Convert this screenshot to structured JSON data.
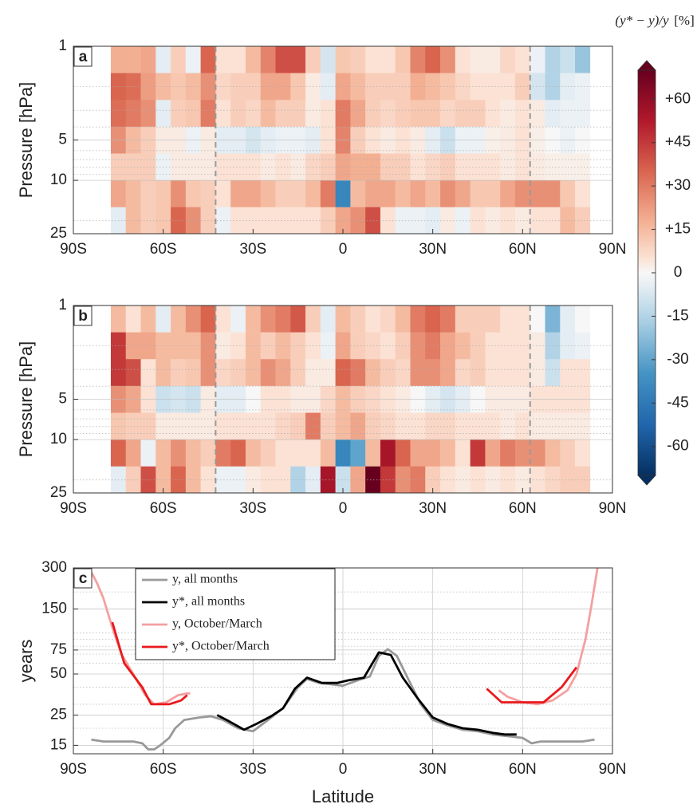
{
  "chart_data": [
    {
      "type": "heatmap",
      "panel": "a",
      "ylabel": "Pressure [hPa]",
      "xlim": [
        -90,
        90
      ],
      "ylim": [
        1,
        25
      ],
      "log_y": true,
      "y_reversed": true,
      "xticks": [
        {
          "value": -90,
          "label": "90S"
        },
        {
          "value": -60,
          "label": "60S"
        },
        {
          "value": -30,
          "label": "30S"
        },
        0,
        {
          "value": 30,
          "label": "30N"
        },
        {
          "value": 60,
          "label": "60N"
        },
        {
          "value": 90,
          "label": "90N"
        }
      ],
      "yticks": [
        1,
        5,
        10,
        25
      ],
      "yminor": [
        2,
        3,
        4,
        6,
        7,
        8,
        9,
        20
      ],
      "grid": true,
      "vlines": [
        -42.5,
        62.5
      ],
      "x_edges": [
        -77.5,
        -72.5,
        -67.5,
        -62.5,
        -57.5,
        -52.5,
        -47.5,
        -42.5,
        -37.5,
        -32.5,
        -27.5,
        -22.5,
        -17.5,
        -12.5,
        -7.5,
        -2.5,
        2.5,
        7.5,
        12.5,
        17.5,
        22.5,
        27.5,
        32.5,
        37.5,
        42.5,
        47.5,
        52.5,
        57.5,
        62.5,
        67.5,
        72.5,
        77.5,
        82.5
      ],
      "y_edges": [
        1,
        1.585,
        2.512,
        3.981,
        6.31,
        10,
        15.85,
        25
      ],
      "values": [
        [
          18,
          18,
          20,
          -5,
          10,
          -3,
          35,
          5,
          5,
          15,
          28,
          40,
          40,
          10,
          -8,
          12,
          10,
          5,
          5,
          12,
          28,
          35,
          25,
          5,
          3,
          3,
          8,
          5,
          -3,
          -15,
          -10,
          -20
        ],
        [
          35,
          33,
          22,
          15,
          12,
          15,
          25,
          8,
          10,
          10,
          20,
          20,
          12,
          3,
          -5,
          20,
          15,
          10,
          10,
          10,
          18,
          15,
          12,
          8,
          5,
          5,
          5,
          10,
          -8,
          -15,
          -5,
          -3
        ],
        [
          33,
          30,
          25,
          -5,
          10,
          12,
          30,
          5,
          10,
          8,
          15,
          10,
          10,
          3,
          5,
          30,
          20,
          10,
          8,
          10,
          12,
          12,
          8,
          10,
          10,
          5,
          3,
          5,
          3,
          -5,
          -3,
          -3
        ],
        [
          25,
          15,
          10,
          3,
          3,
          -3,
          3,
          -5,
          -5,
          -8,
          -5,
          -3,
          -3,
          -5,
          5,
          28,
          10,
          5,
          3,
          5,
          3,
          -5,
          -10,
          -3,
          -3,
          2,
          3,
          5,
          2,
          0,
          -3,
          0
        ],
        [
          10,
          10,
          10,
          -3,
          3,
          3,
          3,
          5,
          5,
          5,
          3,
          5,
          3,
          8,
          10,
          20,
          18,
          18,
          10,
          10,
          5,
          8,
          10,
          5,
          5,
          5,
          3,
          5,
          3,
          2,
          2,
          2
        ],
        [
          20,
          15,
          10,
          12,
          25,
          12,
          10,
          5,
          20,
          20,
          15,
          10,
          10,
          15,
          30,
          -40,
          15,
          20,
          20,
          15,
          20,
          15,
          25,
          20,
          12,
          12,
          20,
          25,
          25,
          25,
          12,
          5
        ],
        [
          -5,
          15,
          10,
          12,
          35,
          25,
          10,
          -3,
          5,
          5,
          5,
          5,
          5,
          5,
          10,
          20,
          25,
          40,
          5,
          -3,
          -3,
          -5,
          3,
          -3,
          5,
          3,
          5,
          3,
          5,
          5,
          15,
          10
        ]
      ],
      "colorbar": {
        "label": "(y* − y)/y",
        "unit": "[%]",
        "clim": [
          -70,
          70
        ],
        "ticks": [
          {
            "value": 60,
            "label": "+60"
          },
          {
            "value": 45,
            "label": "+45"
          },
          {
            "value": 30,
            "label": "+30"
          },
          {
            "value": 15,
            "label": "+15"
          },
          0,
          -15,
          -30,
          -45,
          -60
        ],
        "colormap": [
          [
            -70,
            "#053061"
          ],
          [
            -52.5,
            "#2166ac"
          ],
          [
            -35,
            "#4393c3"
          ],
          [
            -17.5,
            "#a6cde3"
          ],
          [
            -5,
            "#e3edf3"
          ],
          [
            0,
            "#f7f7f7"
          ],
          [
            5,
            "#fbe2d4"
          ],
          [
            17.5,
            "#f4b194"
          ],
          [
            35,
            "#d9654f"
          ],
          [
            52.5,
            "#b2182b"
          ],
          [
            70,
            "#67001f"
          ]
        ]
      }
    },
    {
      "type": "heatmap",
      "panel": "b",
      "ylabel": "Pressure [hPa]",
      "xlim": [
        -90,
        90
      ],
      "ylim": [
        1,
        25
      ],
      "log_y": true,
      "y_reversed": true,
      "xticks": [
        {
          "value": -90,
          "label": "90S"
        },
        {
          "value": -60,
          "label": "60S"
        },
        {
          "value": -30,
          "label": "30S"
        },
        0,
        {
          "value": 30,
          "label": "30N"
        },
        {
          "value": 60,
          "label": "60N"
        },
        {
          "value": 90,
          "label": "90N"
        }
      ],
      "yticks": [
        1,
        5,
        10,
        25
      ],
      "yminor": [
        2,
        3,
        4,
        6,
        7,
        8,
        9,
        20
      ],
      "grid": true,
      "vlines": [
        -42.5,
        62.5
      ],
      "x_edges": [
        -77.5,
        -72.5,
        -67.5,
        -62.5,
        -57.5,
        -52.5,
        -47.5,
        -42.5,
        -37.5,
        -32.5,
        -27.5,
        -22.5,
        -17.5,
        -12.5,
        -7.5,
        -2.5,
        2.5,
        7.5,
        12.5,
        17.5,
        22.5,
        27.5,
        32.5,
        37.5,
        42.5,
        47.5,
        52.5,
        57.5,
        62.5,
        67.5,
        72.5,
        77.5,
        82.5
      ],
      "y_edges": [
        1,
        1.585,
        2.512,
        3.981,
        6.31,
        10,
        15.85,
        25
      ],
      "values": [
        [
          15,
          5,
          15,
          -5,
          15,
          25,
          35,
          5,
          -3,
          15,
          25,
          30,
          38,
          10,
          -5,
          15,
          10,
          5,
          8,
          15,
          30,
          35,
          30,
          10,
          10,
          10,
          5,
          5,
          0,
          -25,
          -5,
          0
        ],
        [
          45,
          20,
          20,
          15,
          15,
          15,
          25,
          3,
          5,
          15,
          10,
          15,
          10,
          5,
          -3,
          20,
          10,
          8,
          5,
          10,
          25,
          30,
          20,
          15,
          10,
          5,
          5,
          5,
          3,
          -15,
          -5,
          -3
        ],
        [
          45,
          40,
          5,
          15,
          10,
          12,
          25,
          8,
          10,
          15,
          25,
          20,
          10,
          3,
          3,
          35,
          30,
          15,
          10,
          8,
          25,
          25,
          20,
          8,
          10,
          5,
          5,
          5,
          3,
          -10,
          5,
          5
        ],
        [
          25,
          20,
          5,
          -10,
          -8,
          -10,
          3,
          -5,
          -5,
          0,
          5,
          5,
          3,
          3,
          8,
          15,
          10,
          8,
          5,
          3,
          0,
          -5,
          -8,
          -5,
          0,
          3,
          3,
          3,
          5,
          5,
          5,
          5
        ],
        [
          12,
          10,
          10,
          3,
          3,
          3,
          3,
          5,
          5,
          5,
          5,
          8,
          10,
          30,
          10,
          15,
          20,
          10,
          8,
          5,
          5,
          8,
          8,
          5,
          5,
          5,
          3,
          5,
          3,
          3,
          3,
          3
        ],
        [
          35,
          20,
          -3,
          15,
          25,
          15,
          10,
          30,
          35,
          15,
          10,
          5,
          5,
          5,
          15,
          -40,
          -30,
          15,
          55,
          35,
          20,
          20,
          15,
          5,
          45,
          20,
          30,
          25,
          25,
          15,
          10,
          5
        ],
        [
          -5,
          10,
          40,
          15,
          35,
          15,
          5,
          -3,
          -3,
          3,
          5,
          5,
          -15,
          -5,
          55,
          -10,
          20,
          70,
          45,
          25,
          30,
          10,
          5,
          3,
          5,
          3,
          5,
          3,
          5,
          8,
          10,
          10
        ]
      ]
    },
    {
      "type": "line",
      "panel": "c",
      "ylabel": "years",
      "xlabel": "Latitude",
      "xlim": [
        -90,
        90
      ],
      "ylim": [
        13,
        300
      ],
      "log_y": true,
      "xticks": [
        {
          "value": -90,
          "label": "90S"
        },
        {
          "value": -60,
          "label": "60S"
        },
        {
          "value": -30,
          "label": "30S"
        },
        0,
        {
          "value": 30,
          "label": "30N"
        },
        {
          "value": 60,
          "label": "60N"
        },
        {
          "value": 90,
          "label": "90N"
        }
      ],
      "yticks": [
        15,
        25,
        50,
        75,
        150,
        300
      ],
      "yminor": [
        20,
        30,
        40,
        60,
        70,
        80,
        90,
        100,
        200
      ],
      "grid": true,
      "series": [
        {
          "name": "y, all months",
          "color": "#999999",
          "x": [
            -84,
            -80,
            -75,
            -70,
            -67,
            -65,
            -63,
            -61,
            -58,
            -56,
            -53,
            -48,
            -44,
            -40,
            -35,
            -30,
            -25,
            -20,
            -15,
            -12,
            -8,
            -4,
            0,
            5,
            9,
            12,
            15,
            18,
            22,
            26,
            30,
            35,
            40,
            45,
            50,
            55,
            60,
            63,
            66,
            70,
            75,
            80,
            84
          ],
          "values": [
            16.5,
            16,
            16,
            16,
            15.5,
            14,
            14,
            15,
            17,
            20,
            23,
            24,
            24.5,
            23,
            20,
            19,
            23,
            28,
            40,
            46,
            43,
            42,
            41,
            45,
            48,
            68,
            76,
            68,
            45,
            30,
            23,
            21,
            19.5,
            19,
            18,
            17.5,
            17,
            15.5,
            16,
            16,
            16,
            16,
            16.5
          ]
        },
        {
          "name": "y*, all months",
          "color": "#000000",
          "x": [
            -42,
            -38,
            -33,
            -29,
            -24,
            -20,
            -16,
            -12,
            -7,
            -2,
            2,
            7,
            12,
            16,
            20,
            25,
            30,
            35,
            40,
            45,
            50,
            54,
            58
          ],
          "values": [
            25,
            22.5,
            19.5,
            21.5,
            24.5,
            28,
            39,
            47,
            43,
            43,
            45,
            47,
            72,
            69,
            47,
            33,
            24,
            21.5,
            20,
            19.5,
            18.5,
            18,
            18
          ]
        },
        {
          "name": "y, October/March",
          "color": "#f4a0a0",
          "x": [
            -84,
            -82,
            -80,
            -77,
            -74,
            -70,
            -66,
            -63,
            -59,
            -55,
            -52,
            -51,
            0,
            52,
            55,
            60,
            65,
            70,
            75,
            78,
            81,
            83,
            85
          ],
          "values": [
            280,
            230,
            180,
            110,
            70,
            50,
            35,
            30,
            31,
            35,
            36,
            36,
            null,
            38,
            34,
            31,
            30,
            32,
            38,
            50,
            90,
            160,
            300
          ]
        },
        {
          "name": "y*, October/March",
          "color": "#e8191c",
          "x": [
            -77,
            -73,
            -67,
            -64,
            -58,
            -54,
            -52,
            0,
            48,
            53,
            60,
            67,
            73,
            78
          ],
          "values": [
            120,
            60,
            40,
            30,
            30,
            32,
            35,
            null,
            39,
            31,
            31,
            31,
            40,
            56
          ]
        }
      ]
    }
  ]
}
